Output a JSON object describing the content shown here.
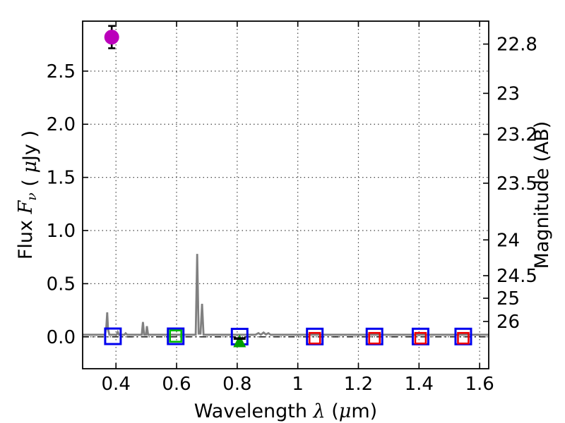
{
  "chart_data": {
    "type": "scatter",
    "title": "",
    "xlabel_parts": [
      {
        "t": "Wavelength  ",
        "math": false
      },
      {
        "t": "λ",
        "math": true
      },
      {
        "t": " (",
        "math": false
      },
      {
        "t": "μ",
        "math": true
      },
      {
        "t": "m)",
        "math": false
      }
    ],
    "ylabel_left_parts": [
      {
        "t": "Flux  ",
        "math": false
      },
      {
        "t": "F",
        "math": true
      },
      {
        "t": "ν",
        "math": true,
        "sub": true
      },
      {
        "t": "  ( ",
        "math": false
      },
      {
        "t": "μ",
        "math": true
      },
      {
        "t": "Jy )",
        "math": false
      }
    ],
    "ylabel_right": "Magnitude (AB)",
    "xlim": [
      0.29,
      1.63
    ],
    "ylim_flux": [
      -0.3,
      2.97
    ],
    "x_ticks": [
      0.4,
      0.6,
      0.8,
      1.0,
      1.2,
      1.4,
      1.6
    ],
    "x_tick_labels": [
      "0.4",
      "0.6",
      "0.8",
      "1",
      "1.2",
      "1.4",
      "1.6"
    ],
    "y_ticks_flux": [
      0.0,
      0.5,
      1.0,
      1.5,
      2.0,
      2.5
    ],
    "y_tick_labels_flux": [
      "0.0",
      "0.5",
      "1.0",
      "1.5",
      "2.0",
      "2.5"
    ],
    "y_ticks_mag": [
      22.8,
      23,
      23.2,
      23.5,
      24,
      24.5,
      25,
      26
    ],
    "y_tick_labels_mag": [
      "22.8",
      "23",
      "23.2",
      "23.5",
      "24",
      "24.5",
      "25",
      "26"
    ],
    "mag_zeropoint_uJy": 23.9,
    "grid": true,
    "grid_color": "#444444",
    "frame_color": "#000000",
    "zero_line": {
      "style": "dash-dot",
      "color": "#000000",
      "flux": 0.0
    },
    "series": [
      {
        "name": "model-spectrum",
        "type": "line",
        "color": "#808080",
        "width": 2.8,
        "points": [
          [
            0.29,
            0.02
          ],
          [
            0.364,
            0.02
          ],
          [
            0.368,
            0.09
          ],
          [
            0.371,
            0.23
          ],
          [
            0.374,
            0.07
          ],
          [
            0.378,
            0.02
          ],
          [
            0.402,
            0.02
          ],
          [
            0.406,
            0.045
          ],
          [
            0.41,
            0.02
          ],
          [
            0.428,
            0.02
          ],
          [
            0.432,
            0.033
          ],
          [
            0.437,
            0.02
          ],
          [
            0.485,
            0.02
          ],
          [
            0.489,
            0.14
          ],
          [
            0.493,
            0.02
          ],
          [
            0.499,
            0.02
          ],
          [
            0.502,
            0.1
          ],
          [
            0.506,
            0.02
          ],
          [
            0.663,
            0.02
          ],
          [
            0.668,
            0.78
          ],
          [
            0.673,
            0.03
          ],
          [
            0.679,
            0.03
          ],
          [
            0.684,
            0.31
          ],
          [
            0.689,
            0.02
          ],
          [
            0.86,
            0.02
          ],
          [
            0.87,
            0.035
          ],
          [
            0.878,
            0.02
          ],
          [
            0.887,
            0.04
          ],
          [
            0.895,
            0.022
          ],
          [
            0.903,
            0.035
          ],
          [
            0.91,
            0.02
          ],
          [
            1.63,
            0.02
          ]
        ]
      },
      {
        "name": "photometry-blue-squares",
        "type": "scatter",
        "marker": "square-open",
        "color": "#0000EE",
        "size": 22,
        "stroke": 3,
        "points": [
          [
            0.39,
            0.005
          ],
          [
            0.597,
            0.005
          ],
          [
            0.808,
            0.002
          ],
          [
            1.056,
            0.003
          ],
          [
            1.253,
            0.003
          ],
          [
            1.405,
            0.003
          ],
          [
            1.546,
            0.003
          ]
        ]
      },
      {
        "name": "photometry-green-square",
        "type": "scatter",
        "marker": "square-open",
        "color": "#00BB00",
        "size": 16,
        "stroke": 2.6,
        "points": [
          [
            0.597,
            0.007
          ]
        ]
      },
      {
        "name": "photometry-red-squares",
        "type": "scatter",
        "marker": "square-open",
        "color": "#EE0000",
        "size": 15,
        "stroke": 2.6,
        "points": [
          [
            1.056,
            -0.013
          ],
          [
            1.253,
            -0.013
          ],
          [
            1.405,
            -0.013
          ],
          [
            1.546,
            -0.013
          ]
        ]
      },
      {
        "name": "upper-limit-green-triangle",
        "type": "scatter",
        "marker": "triangle-up-filled",
        "color": "#00A000",
        "size": 18,
        "points": [
          [
            0.808,
            -0.038
          ]
        ]
      },
      {
        "name": "flux-black-bar",
        "type": "scatter",
        "marker": "hbar-filled",
        "color": "#000000",
        "size": 17,
        "points": [
          [
            0.808,
            -0.016
          ]
        ]
      },
      {
        "name": "detection-magenta-circle",
        "type": "scatter",
        "marker": "circle-filled",
        "color": "#BB00BB",
        "size": 21,
        "points": [
          [
            0.386,
            2.82
          ]
        ],
        "yerr": [
          0.105
        ],
        "err_color": "#000000",
        "err_width": 2.6,
        "err_capsize": 10
      }
    ]
  }
}
